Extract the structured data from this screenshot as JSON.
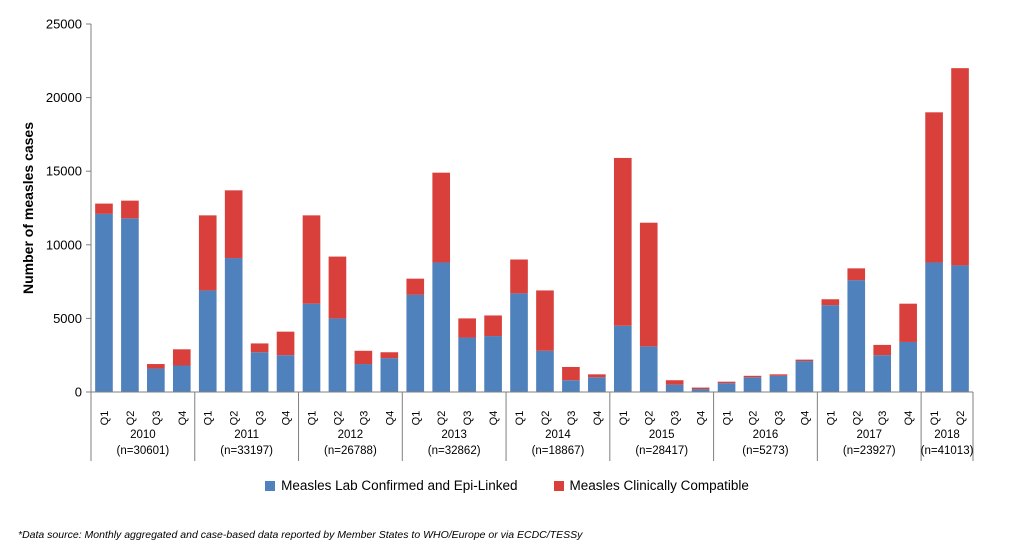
{
  "chart_data": {
    "type": "bar",
    "stacked": true,
    "ylabel": "Number of measles cases",
    "ylim": [
      0,
      25000
    ],
    "yticks": [
      "0",
      "5000",
      "10000",
      "15000",
      "20000",
      "25000"
    ],
    "categories": [
      "Q1",
      "Q2",
      "Q3",
      "Q4",
      "Q1",
      "Q2",
      "Q3",
      "Q4",
      "Q1",
      "Q2",
      "Q3",
      "Q4",
      "Q1",
      "Q2",
      "Q3",
      "Q4",
      "Q1",
      "Q2",
      "Q3",
      "Q4",
      "Q1",
      "Q2",
      "Q3",
      "Q4",
      "Q1",
      "Q2",
      "Q3",
      "Q4",
      "Q1",
      "Q2",
      "Q3",
      "Q4",
      "Q1",
      "Q2"
    ],
    "groups": [
      {
        "year": "2010",
        "n": "(n=30601)",
        "count": 4
      },
      {
        "year": "2011",
        "n": "(n=33197)",
        "count": 4
      },
      {
        "year": "2012",
        "n": "(n=26788)",
        "count": 4
      },
      {
        "year": "2013",
        "n": "(n=32862)",
        "count": 4
      },
      {
        "year": "2014",
        "n": "(n=18867)",
        "count": 4
      },
      {
        "year": "2015",
        "n": "(n=28417)",
        "count": 4
      },
      {
        "year": "2016",
        "n": "(n=5273)",
        "count": 4
      },
      {
        "year": "2017",
        "n": "(n=23927)",
        "count": 4
      },
      {
        "year": "2018",
        "n": "(n=41013)",
        "count": 2
      }
    ],
    "series": [
      {
        "name": "Measles Lab Confirmed and Epi-Linked",
        "color": "#4f81bd",
        "values": [
          12100,
          11800,
          1600,
          1800,
          6900,
          9100,
          2700,
          2500,
          6000,
          5000,
          1900,
          2300,
          6600,
          8800,
          3700,
          3800,
          6700,
          2800,
          800,
          1000,
          4500,
          3100,
          500,
          200,
          600,
          1000,
          1100,
          2100,
          5900,
          7600,
          2500,
          3400,
          8800,
          8600
        ]
      },
      {
        "name": "Measles Clinically Compatible",
        "color": "#d9403c",
        "values": [
          700,
          1200,
          300,
          1100,
          5100,
          4600,
          600,
          1600,
          6000,
          4200,
          900,
          400,
          1100,
          6100,
          1300,
          1400,
          2300,
          4100,
          900,
          200,
          11400,
          8400,
          300,
          100,
          100,
          100,
          100,
          100,
          400,
          800,
          700,
          2600,
          10200,
          13400
        ]
      }
    ]
  },
  "footnote": "*Data source: Monthly aggregated and case-based data reported by Member States to WHO/Europe or via ECDC/TESSy"
}
